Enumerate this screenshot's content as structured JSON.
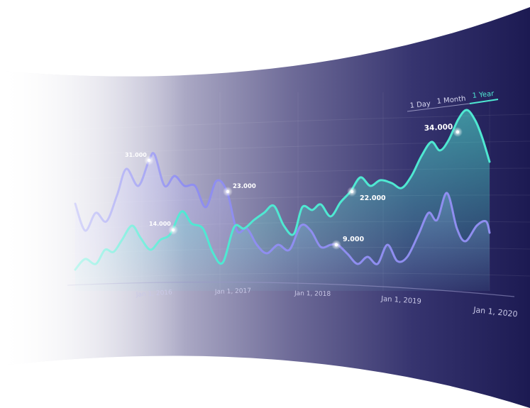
{
  "tabs": {
    "day": "1 Day",
    "month": "1 Month",
    "year": "1 Year",
    "selected": "1 Year"
  },
  "chart_data": {
    "type": "line",
    "x_ticks": [
      "Jan 1, 2016",
      "Jan 1, 2017",
      "Jan 1, 2018",
      "Jan 1, 2019",
      "Jan 1, 2020"
    ],
    "annotations": [
      {
        "label": "31.000",
        "series": "lavender"
      },
      {
        "label": "14.000",
        "series": "teal"
      },
      {
        "label": "23.000",
        "series": "lavender"
      },
      {
        "label": "22.000",
        "series": "teal"
      },
      {
        "label": "9.000",
        "series": "lavender"
      },
      {
        "label": "34.000",
        "series": "teal"
      }
    ],
    "colors": {
      "teal": "#4fe8d2",
      "lavender": "#8f8ef0",
      "background_dark": "#1c1a52"
    }
  }
}
